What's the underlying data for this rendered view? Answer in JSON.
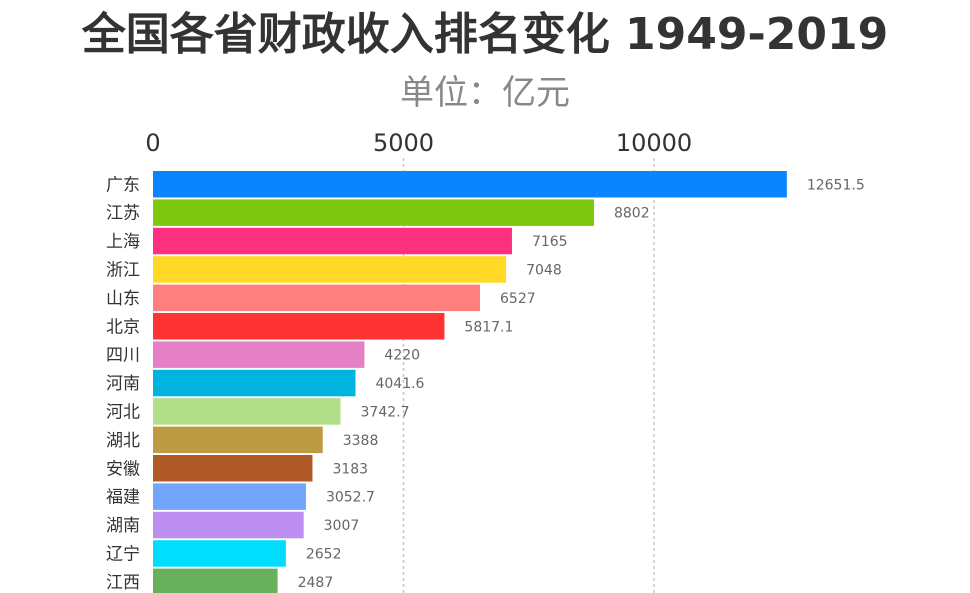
{
  "title": "全国各省财政收入排名变化 1949-2019",
  "subtitle": "单位：亿元",
  "chart_data": {
    "type": "bar",
    "orientation": "horizontal",
    "title": "全国各省财政收入排名变化 1949-2019",
    "subtitle": "单位：亿元",
    "x_axis_position": "top",
    "xlim": [
      0,
      12651.5
    ],
    "x_ticks": [
      0,
      5000,
      10000
    ],
    "x_tick_labels": [
      "0",
      "5000",
      "10000"
    ],
    "grid": "vertical",
    "categories": [
      "广东",
      "江苏",
      "上海",
      "浙江",
      "山东",
      "北京",
      "四川",
      "河南",
      "河北",
      "湖北",
      "安徽",
      "福建",
      "湖南",
      "辽宁",
      "江西"
    ],
    "values": [
      12651.5,
      8802,
      7165,
      7048,
      6527,
      5817.1,
      4220,
      4041.6,
      3742.7,
      3388,
      3183,
      3052.7,
      3007,
      2652,
      2487
    ],
    "value_labels": [
      "12651.5",
      "8802",
      "7165",
      "7048",
      "6527",
      "5817.1",
      "4220",
      "4041.6",
      "3742.7",
      "3388",
      "3183",
      "3052.7",
      "3007",
      "2652",
      "2487"
    ],
    "colors": [
      "#0a84ff",
      "#7ec910",
      "#ff3080",
      "#ffd926",
      "#ff7f7f",
      "#ff3333",
      "#e57fc6",
      "#00b4df",
      "#b1de88",
      "#bd9b43",
      "#b05a28",
      "#71a6fc",
      "#bd8ff0",
      "#00ddff",
      "#68b05c"
    ]
  }
}
